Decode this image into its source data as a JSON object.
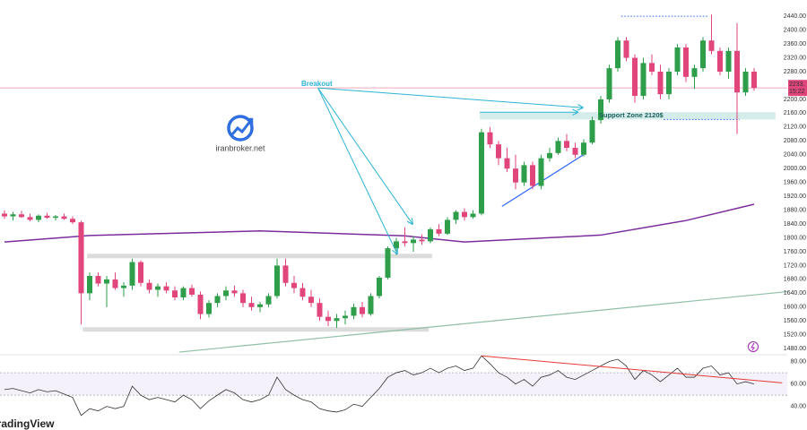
{
  "chart_data": {
    "type": "candlestick",
    "up_color": "#2e9e4a",
    "down_color": "#e0457b",
    "candles": [
      [
        1870,
        1880,
        1855,
        1862
      ],
      [
        1862,
        1875,
        1850,
        1868
      ],
      [
        1868,
        1878,
        1858,
        1860
      ],
      [
        1860,
        1870,
        1848,
        1852
      ],
      [
        1852,
        1868,
        1845,
        1864
      ],
      [
        1864,
        1872,
        1855,
        1858
      ],
      [
        1858,
        1866,
        1850,
        1862
      ],
      [
        1862,
        1870,
        1852,
        1855
      ],
      [
        1855,
        1862,
        1840,
        1845
      ],
      [
        1845,
        1850,
        1550,
        1640
      ],
      [
        1640,
        1700,
        1620,
        1690
      ],
      [
        1690,
        1700,
        1660,
        1668
      ],
      [
        1668,
        1690,
        1600,
        1680
      ],
      [
        1680,
        1700,
        1650,
        1655
      ],
      [
        1655,
        1672,
        1630,
        1662
      ],
      [
        1662,
        1740,
        1650,
        1730
      ],
      [
        1730,
        1735,
        1660,
        1670
      ],
      [
        1670,
        1680,
        1640,
        1650
      ],
      [
        1650,
        1668,
        1630,
        1660
      ],
      [
        1660,
        1672,
        1640,
        1648
      ],
      [
        1648,
        1660,
        1620,
        1628
      ],
      [
        1628,
        1660,
        1620,
        1655
      ],
      [
        1655,
        1665,
        1630,
        1636
      ],
      [
        1636,
        1645,
        1565,
        1580
      ],
      [
        1580,
        1620,
        1570,
        1612
      ],
      [
        1612,
        1640,
        1600,
        1632
      ],
      [
        1632,
        1660,
        1620,
        1648
      ],
      [
        1648,
        1662,
        1630,
        1640
      ],
      [
        1640,
        1650,
        1600,
        1612
      ],
      [
        1612,
        1630,
        1590,
        1600
      ],
      [
        1600,
        1615,
        1585,
        1608
      ],
      [
        1608,
        1640,
        1600,
        1632
      ],
      [
        1632,
        1740,
        1625,
        1720
      ],
      [
        1720,
        1740,
        1660,
        1670
      ],
      [
        1670,
        1690,
        1640,
        1655
      ],
      [
        1655,
        1670,
        1620,
        1630
      ],
      [
        1630,
        1650,
        1600,
        1612
      ],
      [
        1612,
        1625,
        1560,
        1572
      ],
      [
        1572,
        1590,
        1545,
        1560
      ],
      [
        1560,
        1580,
        1540,
        1568
      ],
      [
        1568,
        1590,
        1550,
        1575
      ],
      [
        1575,
        1610,
        1565,
        1600
      ],
      [
        1600,
        1615,
        1570,
        1580
      ],
      [
        1580,
        1640,
        1575,
        1632
      ],
      [
        1632,
        1690,
        1625,
        1685
      ],
      [
        1685,
        1775,
        1680,
        1770
      ],
      [
        1770,
        1800,
        1750,
        1790
      ],
      [
        1790,
        1830,
        1775,
        1785
      ],
      [
        1785,
        1805,
        1760,
        1795
      ],
      [
        1795,
        1810,
        1780,
        1790
      ],
      [
        1790,
        1830,
        1785,
        1825
      ],
      [
        1825,
        1840,
        1805,
        1812
      ],
      [
        1812,
        1860,
        1808,
        1852
      ],
      [
        1852,
        1880,
        1840,
        1875
      ],
      [
        1875,
        1885,
        1850,
        1860
      ],
      [
        1860,
        1880,
        1855,
        1870
      ],
      [
        1870,
        2115,
        1865,
        2105
      ],
      [
        2105,
        2120,
        2060,
        2070
      ],
      [
        2070,
        2080,
        2010,
        2030
      ],
      [
        2030,
        2060,
        1990,
        2000
      ],
      [
        2000,
        2040,
        1940,
        1960
      ],
      [
        1960,
        2020,
        1950,
        2010
      ],
      [
        2010,
        2020,
        1940,
        1950
      ],
      [
        1950,
        2040,
        1940,
        2030
      ],
      [
        2030,
        2060,
        2020,
        2045
      ],
      [
        2045,
        2090,
        2040,
        2080
      ],
      [
        2080,
        2100,
        2050,
        2060
      ],
      [
        2060,
        2075,
        2030,
        2040
      ],
      [
        2040,
        2085,
        2035,
        2075
      ],
      [
        2075,
        2150,
        2070,
        2140
      ],
      [
        2140,
        2210,
        2130,
        2200
      ],
      [
        2200,
        2300,
        2190,
        2290
      ],
      [
        2290,
        2380,
        2280,
        2370
      ],
      [
        2370,
        2380,
        2310,
        2320
      ],
      [
        2320,
        2330,
        2190,
        2210
      ],
      [
        2210,
        2320,
        2200,
        2305
      ],
      [
        2305,
        2330,
        2270,
        2280
      ],
      [
        2280,
        2300,
        2200,
        2215
      ],
      [
        2215,
        2290,
        2200,
        2280
      ],
      [
        2280,
        2360,
        2270,
        2350
      ],
      [
        2350,
        2360,
        2250,
        2265
      ],
      [
        2265,
        2300,
        2230,
        2290
      ],
      [
        2290,
        2380,
        2280,
        2370
      ],
      [
        2370,
        2445,
        2330,
        2340
      ],
      [
        2340,
        2350,
        2270,
        2280
      ],
      [
        2280,
        2350,
        2260,
        2340
      ],
      [
        2340,
        2420,
        2100,
        2220
      ],
      [
        2220,
        2290,
        2210,
        2280
      ],
      [
        2280,
        2290,
        2225,
        2233
      ]
    ],
    "ylim": [
      1465,
      2487
    ],
    "yticks": [
      {
        "value": 2440,
        "label": "2440.00"
      },
      {
        "value": 2400,
        "label": "2400.00"
      },
      {
        "value": 2360,
        "label": "2360.00"
      },
      {
        "value": 2320,
        "label": "2320.00"
      },
      {
        "value": 2280,
        "label": "2280.00"
      },
      {
        "value": 2200,
        "label": "2200.00"
      },
      {
        "value": 2160,
        "label": "2160.00"
      },
      {
        "value": 2120,
        "label": "2120.00"
      },
      {
        "value": 2080,
        "label": "2080.00"
      },
      {
        "value": 2040,
        "label": "2040.00"
      },
      {
        "value": 2000,
        "label": "2000.00"
      },
      {
        "value": 1960,
        "label": "1960.00"
      },
      {
        "value": 1920,
        "label": "1920.00"
      },
      {
        "value": 1880,
        "label": "1880.00"
      },
      {
        "value": 1840,
        "label": "1840.00"
      },
      {
        "value": 1800,
        "label": "1800.00"
      },
      {
        "value": 1760,
        "label": "1760.00"
      },
      {
        "value": 1720,
        "label": "1720.00"
      },
      {
        "value": 1680,
        "label": "1680.00"
      },
      {
        "value": 1640,
        "label": "1640.00"
      },
      {
        "value": 1600,
        "label": "1600.00"
      },
      {
        "value": 1560,
        "label": "1560.00"
      },
      {
        "value": 1520,
        "label": "1520.00"
      },
      {
        "value": 1480,
        "label": "1480.00"
      }
    ],
    "price_label": "2233.",
    "countdown": "15:22",
    "price_line_color": "#f2a7bd",
    "moving_average": {
      "color": "#7b2d9c",
      "x": [
        0,
        10,
        30,
        47,
        54,
        70,
        80,
        88
      ],
      "values": [
        1788,
        1807,
        1820,
        1806,
        1788,
        1808,
        1850,
        1897
      ]
    },
    "zones": [
      {
        "x": [
          9.7,
          50.2
        ],
        "y": [
          1741,
          1754
        ],
        "color": "#dcdcdc"
      },
      {
        "x": [
          9.2,
          49.8
        ],
        "y": [
          1529,
          1542
        ],
        "color": "#dcdcdc"
      },
      {
        "x": [
          55.8,
          90.5
        ],
        "y": [
          2142,
          2163
        ],
        "color": "#d4ecea"
      }
    ],
    "dotted_levels": [
      {
        "x": [
          72.4,
          82.6
        ],
        "value": 2440,
        "color": "#2962ff"
      },
      {
        "x": [
          77.4,
          86.3
        ],
        "value": 2142,
        "color": "#2962ff"
      }
    ],
    "trendlines": [
      {
        "x": [
          58.4,
          67.9
        ],
        "y": [
          1891,
          2039
        ],
        "color": "#2962ff"
      },
      {
        "x": [
          20.5,
          92.4
        ],
        "y": [
          1470,
          1646
        ],
        "color": "#8fbfa6"
      }
    ],
    "arrows": {
      "color": "#2bb3d4",
      "list": [
        {
          "from": [
            36.8,
            2233
          ],
          "to": [
            67.9,
            2176
          ]
        },
        {
          "from": [
            36.8,
            2233
          ],
          "to": [
            47.9,
            1840
          ]
        },
        {
          "from": [
            36.8,
            2233
          ],
          "to": [
            46.1,
            1754
          ]
        },
        {
          "from": [
            55.8,
            2163
          ],
          "to": [
            67.3,
            2163
          ]
        }
      ]
    },
    "breakout_label": "Breakout",
    "support_label": "Support Zone 2120$",
    "watermark": "iranbroker.net",
    "brand": "TradingView",
    "rsi": {
      "color": "#333333",
      "values": [
        55,
        56,
        54,
        52,
        55,
        53,
        54,
        51,
        48,
        32,
        38,
        36,
        40,
        38,
        40,
        58,
        50,
        46,
        48,
        46,
        44,
        50,
        46,
        38,
        45,
        50,
        55,
        52,
        46,
        44,
        46,
        50,
        66,
        55,
        50,
        46,
        44,
        38,
        36,
        35,
        37,
        42,
        40,
        48,
        56,
        66,
        70,
        72,
        68,
        70,
        74,
        70,
        74,
        76,
        72,
        74,
        85,
        78,
        70,
        66,
        60,
        64,
        58,
        66,
        68,
        72,
        66,
        64,
        68,
        72,
        76,
        80,
        82,
        76,
        64,
        72,
        68,
        62,
        68,
        74,
        66,
        66,
        74,
        76,
        68,
        70,
        60,
        62,
        60
      ],
      "ylim": [
        19,
        86
      ],
      "yticks": [
        {
          "value": 80,
          "label": "80.00"
        },
        {
          "value": 60,
          "label": "60.00"
        },
        {
          "value": 40,
          "label": "40.00"
        }
      ],
      "levels": [
        70,
        50
      ],
      "trendline": {
        "x": [
          56,
          91.3
        ],
        "y": [
          85,
          61
        ],
        "color": "#e53935"
      }
    }
  }
}
